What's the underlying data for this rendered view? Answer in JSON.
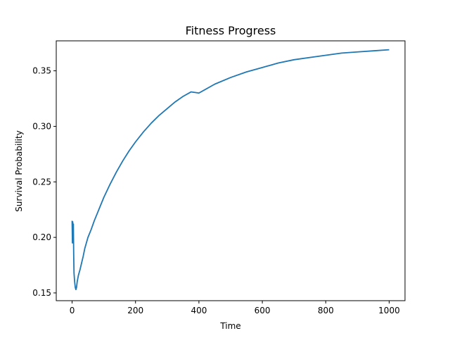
{
  "chart_data": {
    "type": "line",
    "title": "Fitness Progress",
    "xlabel": "Time",
    "ylabel": "Survival Probability",
    "xlim": [
      -50,
      1050
    ],
    "ylim": [
      0.143,
      0.377
    ],
    "xticks": [
      0,
      200,
      400,
      600,
      800,
      1000
    ],
    "xtick_labels": [
      "0",
      "200",
      "400",
      "600",
      "800",
      "1000"
    ],
    "yticks": [
      0.15,
      0.2,
      0.25,
      0.3,
      0.35
    ],
    "ytick_labels": [
      "0.15",
      "0.20",
      "0.25",
      "0.30",
      "0.35"
    ],
    "grid": false,
    "series": [
      {
        "color": "#1f77b4",
        "x": [
          0,
          1,
          2,
          3,
          4,
          5,
          6,
          8,
          10,
          12,
          14,
          16,
          18,
          20,
          25,
          30,
          35,
          40,
          45,
          50,
          60,
          70,
          80,
          90,
          100,
          120,
          140,
          160,
          180,
          200,
          225,
          250,
          275,
          300,
          325,
          350,
          375,
          400,
          450,
          500,
          550,
          600,
          650,
          700,
          750,
          800,
          850,
          900,
          950,
          1000
        ],
        "y": [
          0.215,
          0.195,
          0.214,
          0.195,
          0.212,
          0.185,
          0.168,
          0.16,
          0.155,
          0.153,
          0.155,
          0.16,
          0.163,
          0.166,
          0.171,
          0.177,
          0.183,
          0.19,
          0.195,
          0.2,
          0.207,
          0.215,
          0.222,
          0.229,
          0.236,
          0.248,
          0.259,
          0.269,
          0.278,
          0.286,
          0.295,
          0.303,
          0.31,
          0.316,
          0.322,
          0.327,
          0.331,
          0.33,
          0.338,
          0.344,
          0.349,
          0.353,
          0.357,
          0.36,
          0.362,
          0.364,
          0.366,
          0.367,
          0.368,
          0.369
        ]
      }
    ]
  }
}
